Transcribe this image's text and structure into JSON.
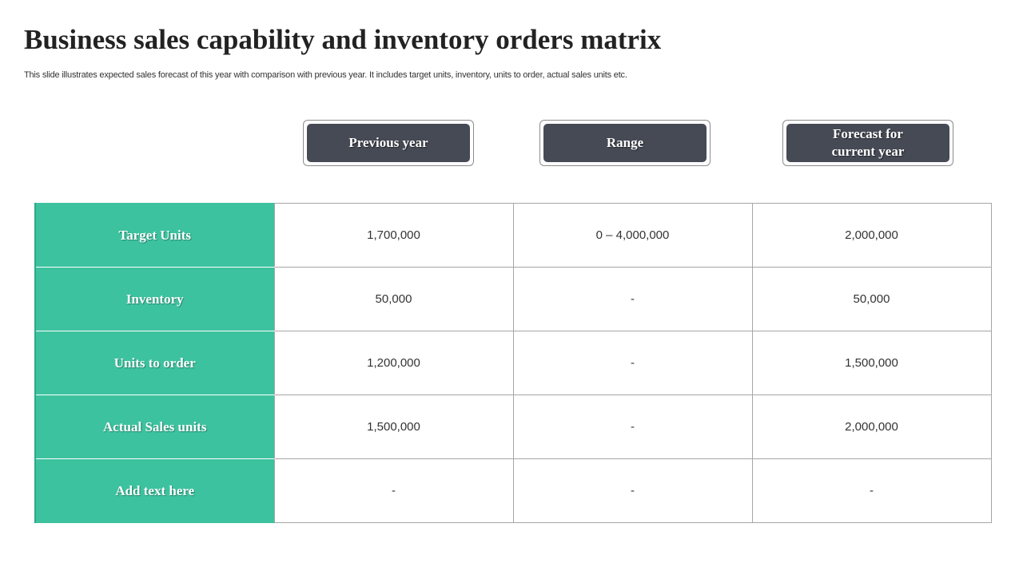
{
  "slide": {
    "title": "Business sales capability and inventory orders matrix",
    "subtitle": "This slide illustrates expected sales forecast of this year with comparison with previous year. It includes target units, inventory, units to order, actual sales units etc."
  },
  "headers": {
    "previous_year": "Previous year",
    "range": "Range",
    "forecast": "Forecast for current year"
  },
  "colors": {
    "label_column": "#3dc29f",
    "header_box": "#464a55",
    "title_text": "#222222"
  },
  "rows": [
    {
      "label": "Target Units",
      "previous_year": "1,700,000",
      "range": "0 – 4,000,000",
      "forecast": "2,000,000"
    },
    {
      "label": "Inventory",
      "previous_year": "50,000",
      "range": "-",
      "forecast": "50,000"
    },
    {
      "label": "Units to order",
      "previous_year": "1,200,000",
      "range": "-",
      "forecast": "1,500,000"
    },
    {
      "label": "Actual Sales units",
      "previous_year": "1,500,000",
      "range": "-",
      "forecast": "2,000,000"
    },
    {
      "label": "Add text here",
      "previous_year": "-",
      "range": "-",
      "forecast": "-"
    }
  ]
}
